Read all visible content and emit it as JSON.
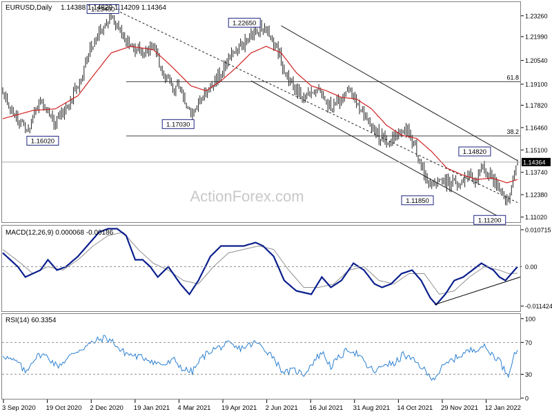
{
  "colors": {
    "candle": "#1e1e1e",
    "ma": "#d02020",
    "macd": "#0a1e8c",
    "signal": "#909090",
    "rsi": "#2a7fd0",
    "trend": "#1e1e1e",
    "level": "#404040",
    "label_border": "#1a237e",
    "grid": "#808080"
  },
  "watermark": "ActionForex.com",
  "chart_data": [
    {
      "type": "candlestick",
      "title": "EURUSD,Daily",
      "ohlc_text": "1.14388 1.14829 1.14209 1.14364",
      "ylim": [
        1.1075,
        1.2405
      ],
      "y_ticks": [
        "1.23260",
        "1.21990",
        "1.20540",
        "1.19100",
        "1.17820",
        "1.16460",
        "1.15100",
        "1.13740",
        "1.12380",
        "1.11020"
      ],
      "current_price": "1.14364",
      "x_ticks": [
        "3 Sep 2020",
        "19 Oct 2020",
        "2 Dec 2020",
        "19 Jan 2021",
        "4 Mar 2021",
        "19 Apr 2021",
        "2 Jun 2021",
        "16 Jul 2021",
        "31 Aug 2021",
        "14 Oct 2021",
        "29 Nov 2021",
        "12 Jan 2022"
      ],
      "price_path": [
        [
          0,
          1.186
        ],
        [
          6,
          1.175
        ],
        [
          12,
          1.168
        ],
        [
          16,
          1.163
        ],
        [
          20,
          1.17
        ],
        [
          25,
          1.182
        ],
        [
          30,
          1.174
        ],
        [
          34,
          1.168
        ],
        [
          38,
          1.172
        ],
        [
          45,
          1.18
        ],
        [
          52,
          1.195
        ],
        [
          58,
          1.212
        ],
        [
          63,
          1.222
        ],
        [
          68,
          1.226
        ],
        [
          72,
          1.233
        ],
        [
          76,
          1.227
        ],
        [
          80,
          1.219
        ],
        [
          86,
          1.213
        ],
        [
          92,
          1.21
        ],
        [
          98,
          1.214
        ],
        [
          102,
          1.209
        ],
        [
          108,
          1.194
        ],
        [
          113,
          1.189
        ],
        [
          118,
          1.188
        ],
        [
          123,
          1.176
        ],
        [
          126,
          1.172
        ],
        [
          132,
          1.181
        ],
        [
          138,
          1.19
        ],
        [
          145,
          1.198
        ],
        [
          150,
          1.206
        ],
        [
          155,
          1.212
        ],
        [
          160,
          1.214
        ],
        [
          164,
          1.221
        ],
        [
          168,
          1.225
        ],
        [
          172,
          1.224
        ],
        [
          178,
          1.22
        ],
        [
          183,
          1.211
        ],
        [
          187,
          1.199
        ],
        [
          192,
          1.19
        ],
        [
          196,
          1.186
        ],
        [
          200,
          1.183
        ],
        [
          205,
          1.186
        ],
        [
          210,
          1.19
        ],
        [
          214,
          1.182
        ],
        [
          218,
          1.176
        ],
        [
          222,
          1.179
        ],
        [
          226,
          1.183
        ],
        [
          230,
          1.188
        ],
        [
          233,
          1.183
        ],
        [
          237,
          1.178
        ],
        [
          240,
          1.172
        ],
        [
          245,
          1.166
        ],
        [
          250,
          1.16
        ],
        [
          255,
          1.157
        ],
        [
          260,
          1.159
        ],
        [
          265,
          1.162
        ],
        [
          268,
          1.164
        ],
        [
          271,
          1.158
        ],
        [
          275,
          1.15
        ],
        [
          279,
          1.14
        ],
        [
          283,
          1.128
        ],
        [
          287,
          1.128
        ],
        [
          291,
          1.131
        ],
        [
          295,
          1.132
        ],
        [
          300,
          1.13
        ],
        [
          305,
          1.132
        ],
        [
          310,
          1.135
        ],
        [
          315,
          1.133
        ],
        [
          319,
          1.142
        ],
        [
          322,
          1.137
        ],
        [
          326,
          1.133
        ],
        [
          330,
          1.13
        ],
        [
          333,
          1.122
        ],
        [
          336,
          1.118
        ],
        [
          339,
          1.132
        ],
        [
          341,
          1.141
        ],
        [
          342,
          1.1436
        ]
      ],
      "ma_path": [
        [
          0,
          1.17
        ],
        [
          20,
          1.175
        ],
        [
          35,
          1.176
        ],
        [
          50,
          1.184
        ],
        [
          60,
          1.196
        ],
        [
          72,
          1.21
        ],
        [
          85,
          1.214
        ],
        [
          100,
          1.212
        ],
        [
          112,
          1.202
        ],
        [
          125,
          1.19
        ],
        [
          135,
          1.187
        ],
        [
          145,
          1.193
        ],
        [
          155,
          1.201
        ],
        [
          165,
          1.21
        ],
        [
          175,
          1.214
        ],
        [
          185,
          1.21
        ],
        [
          195,
          1.198
        ],
        [
          205,
          1.19
        ],
        [
          215,
          1.187
        ],
        [
          225,
          1.183
        ],
        [
          235,
          1.182
        ],
        [
          245,
          1.176
        ],
        [
          255,
          1.166
        ],
        [
          265,
          1.16
        ],
        [
          275,
          1.158
        ],
        [
          285,
          1.15
        ],
        [
          295,
          1.14
        ],
        [
          305,
          1.136
        ],
        [
          315,
          1.133
        ],
        [
          325,
          1.134
        ],
        [
          335,
          1.131
        ],
        [
          342,
          1.133
        ]
      ],
      "channels": [
        {
          "name": "upper",
          "from": [
            185,
            1.2265
          ],
          "to": [
            342,
            1.1445
          ]
        },
        {
          "name": "middle",
          "from": [
            78,
            1.2348
          ],
          "to": [
            342,
            1.119
          ]
        },
        {
          "name": "lower",
          "from": [
            165,
            1.193
          ],
          "to": [
            330,
            1.1102
          ]
        }
      ],
      "levels": [
        {
          "label": "61.8",
          "value": 1.1925,
          "from_x": 82
        },
        {
          "label": "38.2",
          "value": 1.1595,
          "from_x": 82
        }
      ],
      "annotations": [
        {
          "label": "1.23480",
          "x": 78,
          "y": 1.2348,
          "pos": "left"
        },
        {
          "label": "1.22650",
          "x": 172,
          "y": 1.2265,
          "pos": "left"
        },
        {
          "label": "1.17030",
          "x": 128,
          "y": 1.1703,
          "pos": "below-left"
        },
        {
          "label": "1.16020",
          "x": 38,
          "y": 1.1602,
          "pos": "below-left"
        },
        {
          "label": "1.14820",
          "x": 325,
          "y": 1.1482,
          "pos": "left"
        },
        {
          "label": "1.11850",
          "x": 287,
          "y": 1.1185,
          "pos": "left"
        },
        {
          "label": "1.11200",
          "x": 335,
          "y": 1.112,
          "pos": "below-left"
        }
      ]
    },
    {
      "type": "line",
      "title": "MACD(12,26,9) 0.000068 -0.00186",
      "ylim": [
        -0.0127,
        0.0117
      ],
      "y_ticks": [
        "0.010715",
        "0.00",
        "-0.011424"
      ],
      "current_value": "0.00",
      "macd_path": [
        [
          0,
          0.004
        ],
        [
          10,
          0.0
        ],
        [
          15,
          -0.003
        ],
        [
          20,
          -0.002
        ],
        [
          25,
          -0.001
        ],
        [
          30,
          0.002
        ],
        [
          36,
          -0.001
        ],
        [
          42,
          0.0
        ],
        [
          50,
          0.003
        ],
        [
          58,
          0.007
        ],
        [
          64,
          0.01
        ],
        [
          70,
          0.011
        ],
        [
          76,
          0.011
        ],
        [
          82,
          0.009
        ],
        [
          88,
          0.002
        ],
        [
          93,
          0.002
        ],
        [
          98,
          0.0
        ],
        [
          103,
          -0.003
        ],
        [
          110,
          0.0
        ],
        [
          118,
          -0.005
        ],
        [
          124,
          -0.008
        ],
        [
          130,
          -0.004
        ],
        [
          138,
          0.003
        ],
        [
          145,
          0.006
        ],
        [
          150,
          0.006
        ],
        [
          160,
          0.006
        ],
        [
          168,
          0.007
        ],
        [
          173,
          0.006
        ],
        [
          180,
          0.003
        ],
        [
          187,
          -0.004
        ],
        [
          195,
          -0.007
        ],
        [
          205,
          -0.008
        ],
        [
          212,
          -0.003
        ],
        [
          218,
          -0.006
        ],
        [
          225,
          -0.004
        ],
        [
          233,
          0.001
        ],
        [
          240,
          -0.001
        ],
        [
          247,
          -0.005
        ],
        [
          252,
          -0.006
        ],
        [
          258,
          -0.005
        ],
        [
          265,
          -0.002
        ],
        [
          272,
          -0.001
        ],
        [
          278,
          -0.004
        ],
        [
          284,
          -0.009
        ],
        [
          288,
          -0.011
        ],
        [
          294,
          -0.008
        ],
        [
          300,
          -0.004
        ],
        [
          306,
          -0.003
        ],
        [
          312,
          -0.001
        ],
        [
          318,
          0.001
        ],
        [
          322,
          0.0
        ],
        [
          326,
          -0.001
        ],
        [
          330,
          -0.003
        ],
        [
          334,
          -0.004
        ],
        [
          338,
          -0.002
        ],
        [
          342,
          0.0
        ]
      ],
      "signal_path": [
        [
          0,
          0.005
        ],
        [
          12,
          0.001
        ],
        [
          20,
          -0.002
        ],
        [
          30,
          0.0
        ],
        [
          40,
          -0.001
        ],
        [
          50,
          0.002
        ],
        [
          60,
          0.006
        ],
        [
          70,
          0.009
        ],
        [
          80,
          0.01
        ],
        [
          90,
          0.005
        ],
        [
          100,
          0.001
        ],
        [
          110,
          -0.001
        ],
        [
          120,
          -0.004
        ],
        [
          130,
          -0.005
        ],
        [
          140,
          0.0
        ],
        [
          150,
          0.004
        ],
        [
          160,
          0.005
        ],
        [
          170,
          0.006
        ],
        [
          180,
          0.005
        ],
        [
          190,
          -0.001
        ],
        [
          200,
          -0.006
        ],
        [
          210,
          -0.006
        ],
        [
          220,
          -0.005
        ],
        [
          230,
          -0.001
        ],
        [
          240,
          0.0
        ],
        [
          250,
          -0.004
        ],
        [
          260,
          -0.005
        ],
        [
          270,
          -0.002
        ],
        [
          280,
          -0.002
        ],
        [
          290,
          -0.008
        ],
        [
          300,
          -0.007
        ],
        [
          310,
          -0.003
        ],
        [
          320,
          0.0
        ],
        [
          330,
          -0.001
        ],
        [
          336,
          -0.002
        ],
        [
          342,
          -0.0019
        ]
      ],
      "trendline": {
        "from": [
          287,
          -0.011
        ],
        "to": [
          342,
          -0.003
        ]
      }
    },
    {
      "type": "line",
      "title": "RSI(14) 60.3354",
      "ylim": [
        0,
        105
      ],
      "y_ticks": [
        "100",
        "70",
        "30",
        "0"
      ],
      "levels": [
        70,
        30
      ],
      "rsi_path": [
        [
          0,
          55
        ],
        [
          5,
          48
        ],
        [
          10,
          45
        ],
        [
          15,
          32
        ],
        [
          20,
          48
        ],
        [
          25,
          55
        ],
        [
          30,
          52
        ],
        [
          36,
          40
        ],
        [
          42,
          48
        ],
        [
          48,
          58
        ],
        [
          55,
          65
        ],
        [
          62,
          72
        ],
        [
          68,
          76
        ],
        [
          74,
          70
        ],
        [
          78,
          60
        ],
        [
          84,
          55
        ],
        [
          90,
          52
        ],
        [
          96,
          50
        ],
        [
          102,
          44
        ],
        [
          108,
          42
        ],
        [
          114,
          48
        ],
        [
          120,
          36
        ],
        [
          126,
          33
        ],
        [
          132,
          50
        ],
        [
          138,
          60
        ],
        [
          144,
          64
        ],
        [
          150,
          68
        ],
        [
          156,
          62
        ],
        [
          162,
          65
        ],
        [
          168,
          70
        ],
        [
          174,
          62
        ],
        [
          180,
          52
        ],
        [
          184,
          38
        ],
        [
          188,
          32
        ],
        [
          194,
          35
        ],
        [
          200,
          30
        ],
        [
          206,
          45
        ],
        [
          212,
          58
        ],
        [
          218,
          40
        ],
        [
          224,
          52
        ],
        [
          230,
          62
        ],
        [
          236,
          55
        ],
        [
          242,
          40
        ],
        [
          248,
          33
        ],
        [
          254,
          44
        ],
        [
          260,
          42
        ],
        [
          266,
          55
        ],
        [
          272,
          48
        ],
        [
          278,
          40
        ],
        [
          283,
          28
        ],
        [
          287,
          26
        ],
        [
          292,
          38
        ],
        [
          297,
          46
        ],
        [
          302,
          52
        ],
        [
          308,
          58
        ],
        [
          314,
          62
        ],
        [
          319,
          66
        ],
        [
          322,
          60
        ],
        [
          326,
          54
        ],
        [
          330,
          48
        ],
        [
          333,
          36
        ],
        [
          336,
          30
        ],
        [
          339,
          52
        ],
        [
          342,
          60.3
        ]
      ]
    }
  ]
}
